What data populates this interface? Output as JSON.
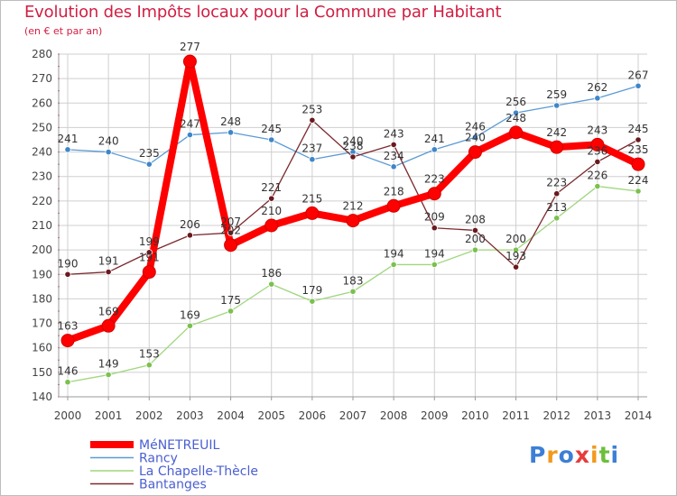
{
  "chart_data": {
    "type": "line",
    "title": "Evolution des Impôts locaux pour la Commune par Habitant",
    "subtitle": "(en € et par an)",
    "xlabel": "",
    "ylabel": "",
    "categories": [
      "2000",
      "2001",
      "2002",
      "2003",
      "2004",
      "2005",
      "2006",
      "2007",
      "2008",
      "2009",
      "2010",
      "2011",
      "2012",
      "2013",
      "2014"
    ],
    "ylim": [
      140,
      280
    ],
    "yticks": [
      140,
      150,
      160,
      170,
      180,
      190,
      200,
      210,
      220,
      230,
      240,
      250,
      260,
      270,
      280
    ],
    "grid": true,
    "series": [
      {
        "name": "Rancy",
        "color": "#5b9bd5",
        "point_color": "#3f86c9",
        "values": [
          241,
          240,
          235,
          247,
          248,
          245,
          237,
          240,
          234,
          241,
          246,
          256,
          259,
          262,
          267
        ]
      },
      {
        "name": "La Chapelle-Thècle",
        "color": "#9fd67c",
        "point_color": "#7cc04f",
        "values": [
          146,
          149,
          153,
          169,
          175,
          186,
          179,
          183,
          194,
          194,
          200,
          200,
          213,
          226,
          224
        ]
      },
      {
        "name": "Bantanges",
        "color": "#7b2a2e",
        "point_color": "#6a1a1e",
        "values": [
          190,
          191,
          199,
          206,
          207,
          221,
          253,
          238,
          243,
          209,
          208,
          193,
          223,
          236,
          245
        ]
      },
      {
        "name": "MéNETREUIL",
        "color": "#ff0000",
        "point_color": "#ff0000",
        "values": [
          163,
          169,
          191,
          277,
          202,
          210,
          215,
          212,
          218,
          223,
          240,
          248,
          242,
          243,
          235
        ]
      }
    ],
    "legend": [
      "MéNETREUIL",
      "Rancy",
      "La Chapelle-Thècle",
      "Bantanges"
    ],
    "legend_position": "bottom-left"
  },
  "logo": {
    "letters": [
      "P",
      "r",
      "o",
      "x",
      "i",
      "t",
      "i"
    ],
    "colors": [
      "#3d7fd6",
      "#f29a1d",
      "#3d7fd6",
      "#e83b3b",
      "#f29a1d",
      "#6cbf3b",
      "#3d7fd6"
    ]
  }
}
